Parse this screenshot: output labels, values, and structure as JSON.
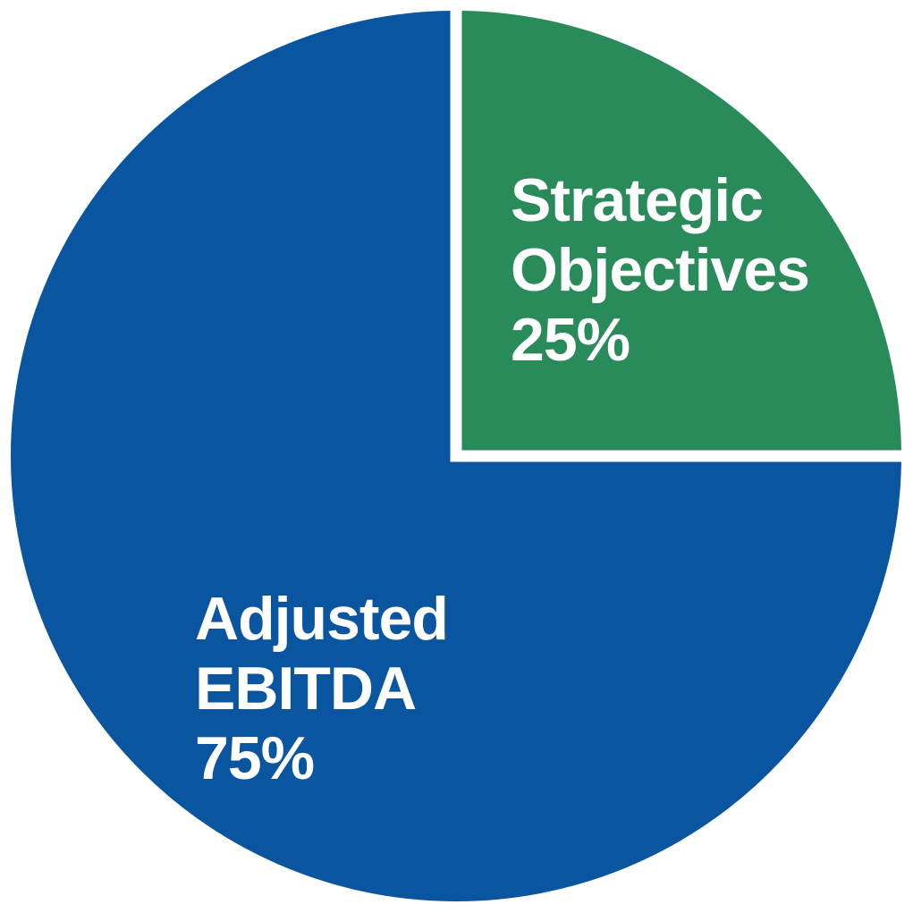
{
  "chart_data": {
    "type": "pie",
    "title": "",
    "slices": [
      {
        "label": "Strategic Objectives",
        "value": 25,
        "pct_label": "25%",
        "color": "#298A5A",
        "label_lines": [
          "Strategic",
          "Objectives"
        ]
      },
      {
        "label": "Adjusted EBITDA",
        "value": 75,
        "pct_label": "75%",
        "color": "#0A55A0",
        "label_lines": [
          "Adjusted",
          "EBITDA"
        ]
      }
    ],
    "start_angle": "12 o'clock",
    "direction": "clockwise",
    "slice_separator_color": "#FFFFFF",
    "label_text_color": "#FFFFFF",
    "background": "#FFFFFF",
    "legend": "none"
  }
}
